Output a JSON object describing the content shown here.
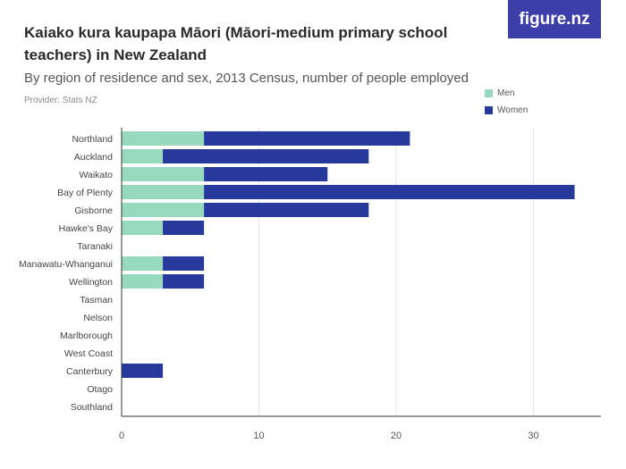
{
  "header": {
    "title": "Kaiako kura kaupapa Māori (Māori-medium primary school teachers) in New Zealand",
    "subtitle": "By region of residence and sex, 2013 Census, number of people employed",
    "provider": "Provider: Stats NZ",
    "brand": "figure.nz"
  },
  "colors": {
    "men": "#96d9bd",
    "women": "#27399b",
    "grid": "#e3e3e3",
    "axis": "#333333"
  },
  "chart_data": {
    "type": "bar",
    "orientation": "horizontal",
    "stacked": true,
    "categories": [
      "Northland",
      "Auckland",
      "Waikato",
      "Bay of Plenty",
      "Gisborne",
      "Hawke's Bay",
      "Taranaki",
      "Manawatu-Whanganui",
      "Wellington",
      "Tasman",
      "Nelson",
      "Marlborough",
      "West Coast",
      "Canterbury",
      "Otago",
      "Southland"
    ],
    "series": [
      {
        "name": "Men",
        "values": [
          6,
          3,
          6,
          6,
          6,
          3,
          0,
          3,
          3,
          0,
          0,
          0,
          0,
          0,
          0,
          0
        ]
      },
      {
        "name": "Women",
        "values": [
          15,
          15,
          9,
          27,
          12,
          3,
          0,
          3,
          3,
          0,
          0,
          0,
          0,
          3,
          0,
          0
        ]
      }
    ],
    "xlim": [
      0,
      35
    ],
    "xticks": [
      "0",
      "10",
      "20",
      "30"
    ],
    "grid": true,
    "legend": "top-right"
  }
}
